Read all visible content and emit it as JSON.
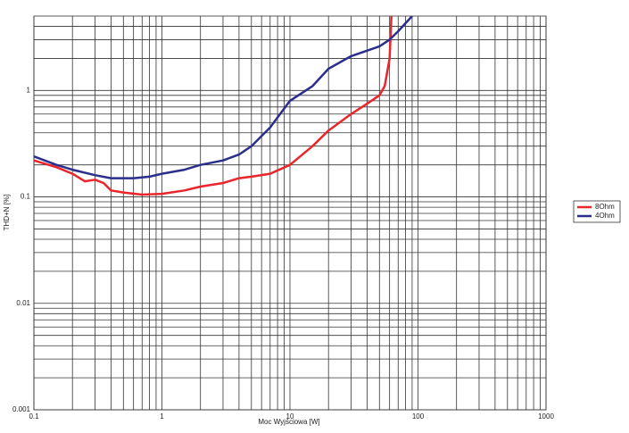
{
  "chart_data": {
    "type": "line",
    "x_label": "Moc Wyjściowa [W]",
    "y_label": "THD+N [%]",
    "log_x": true,
    "log_y": true,
    "grid": true,
    "legend": "right",
    "xlim": [
      0.1,
      1000
    ],
    "xticks": [
      0.1,
      1,
      10,
      100,
      1000
    ],
    "ylim": [
      0.001,
      5
    ],
    "yticks": [
      0.001,
      0.01,
      0.1,
      1
    ],
    "series": [
      {
        "name": "8Ohm",
        "color": "#e8262b",
        "x": [
          0.1,
          0.15,
          0.2,
          0.25,
          0.3,
          0.35,
          0.4,
          0.5,
          0.7,
          1,
          1.5,
          2,
          3,
          4,
          5,
          7,
          10,
          15,
          20,
          30,
          40,
          50,
          55,
          60,
          62
        ],
        "values": [
          0.22,
          0.19,
          0.165,
          0.14,
          0.145,
          0.135,
          0.115,
          0.11,
          0.105,
          0.107,
          0.115,
          0.125,
          0.135,
          0.15,
          0.155,
          0.165,
          0.2,
          0.3,
          0.42,
          0.6,
          0.75,
          0.9,
          1.1,
          2,
          5
        ]
      },
      {
        "name": "4Ohm",
        "color": "#2b2f8c",
        "x": [
          0.1,
          0.15,
          0.2,
          0.3,
          0.4,
          0.6,
          0.8,
          1,
          1.5,
          2,
          3,
          4,
          5,
          7,
          10,
          15,
          20,
          30,
          50,
          60,
          70,
          90
        ],
        "values": [
          0.24,
          0.2,
          0.18,
          0.16,
          0.15,
          0.15,
          0.155,
          0.165,
          0.18,
          0.2,
          0.22,
          0.25,
          0.3,
          0.45,
          0.8,
          1.1,
          1.6,
          2.1,
          2.6,
          3,
          3.6,
          5
        ]
      }
    ]
  }
}
